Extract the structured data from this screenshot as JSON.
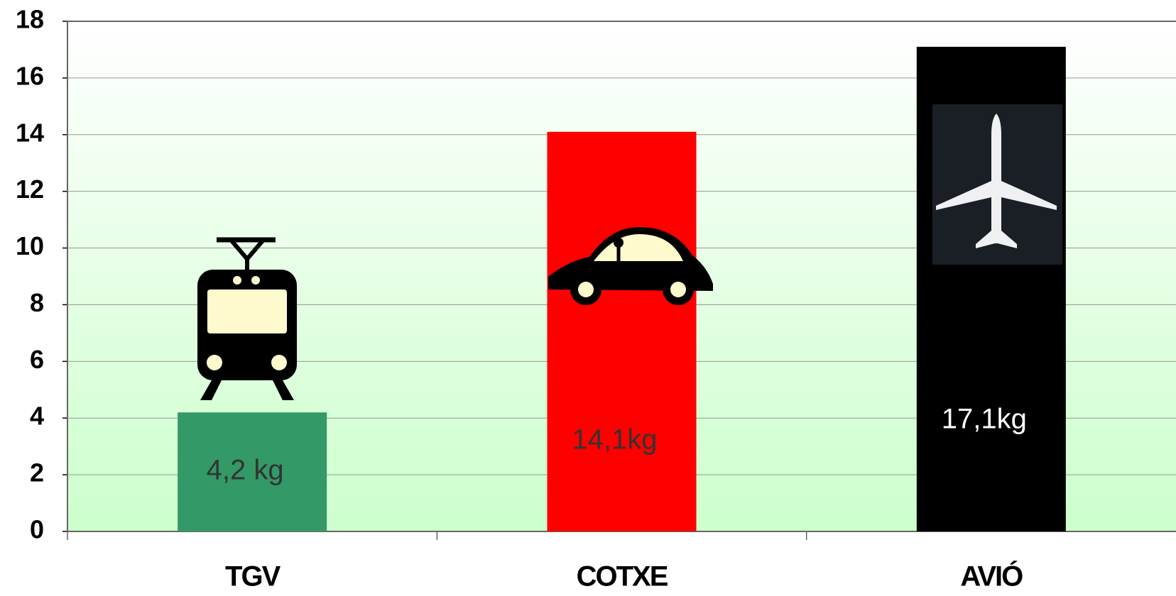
{
  "chart_data": {
    "type": "bar",
    "categories": [
      "TGV",
      "COTXE",
      "AVIÓ"
    ],
    "values": [
      4.2,
      14.1,
      17.1
    ],
    "value_labels": [
      "4,2 kg",
      "14,1kg",
      "17,1kg"
    ],
    "colors": [
      "#339966",
      "#ff0000",
      "#000000"
    ],
    "value_label_colors": [
      "#333333",
      "#333333",
      "#ffffff"
    ],
    "ylim": [
      0,
      18
    ],
    "yticks": [
      0,
      2,
      4,
      6,
      8,
      10,
      12,
      14,
      16,
      18
    ],
    "grid": true
  }
}
